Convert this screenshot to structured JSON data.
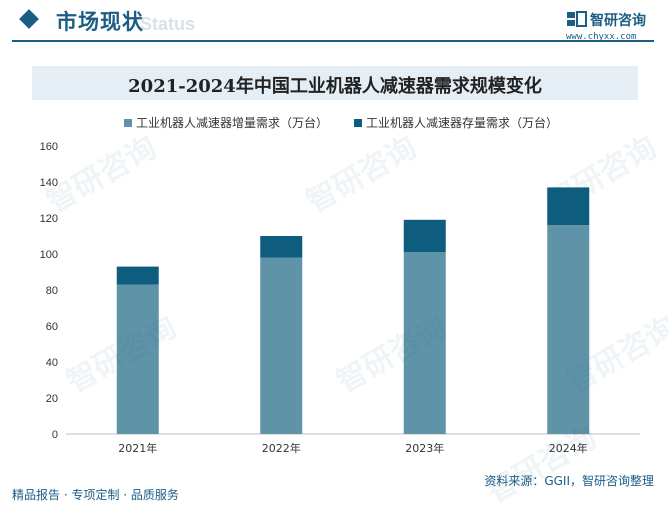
{
  "header": {
    "title": "市场现状",
    "ghost_text": "Status",
    "brand_name": "智研咨询",
    "brand_url": "www.chyxx.com"
  },
  "footer": {
    "left": "精品报告 · 专项定制 · 品质服务",
    "right": "资料来源：GGII，智研咨询整理"
  },
  "watermark_text": "智研咨询",
  "colors": {
    "accent": "#1b5d85",
    "series_increment": "#5f93a8",
    "series_stock": "#0f5d7e",
    "title_bar": "#e6eef5"
  },
  "chart_data": {
    "type": "bar",
    "stacked": true,
    "title": "2021-2024年中国工业机器人减速器需求规模变化",
    "categories": [
      "2021年",
      "2022年",
      "2023年",
      "2024年"
    ],
    "series": [
      {
        "name": "工业机器人减速器增量需求（万台）",
        "values": [
          83,
          98,
          101,
          116
        ]
      },
      {
        "name": "工业机器人减速器存量需求（万台）",
        "values": [
          10,
          12,
          18,
          21
        ]
      }
    ],
    "yticks": [
      0,
      20,
      40,
      60,
      80,
      100,
      120,
      140,
      160
    ],
    "ylim": [
      0,
      160
    ],
    "grid": false,
    "legend_position": "top-left"
  }
}
